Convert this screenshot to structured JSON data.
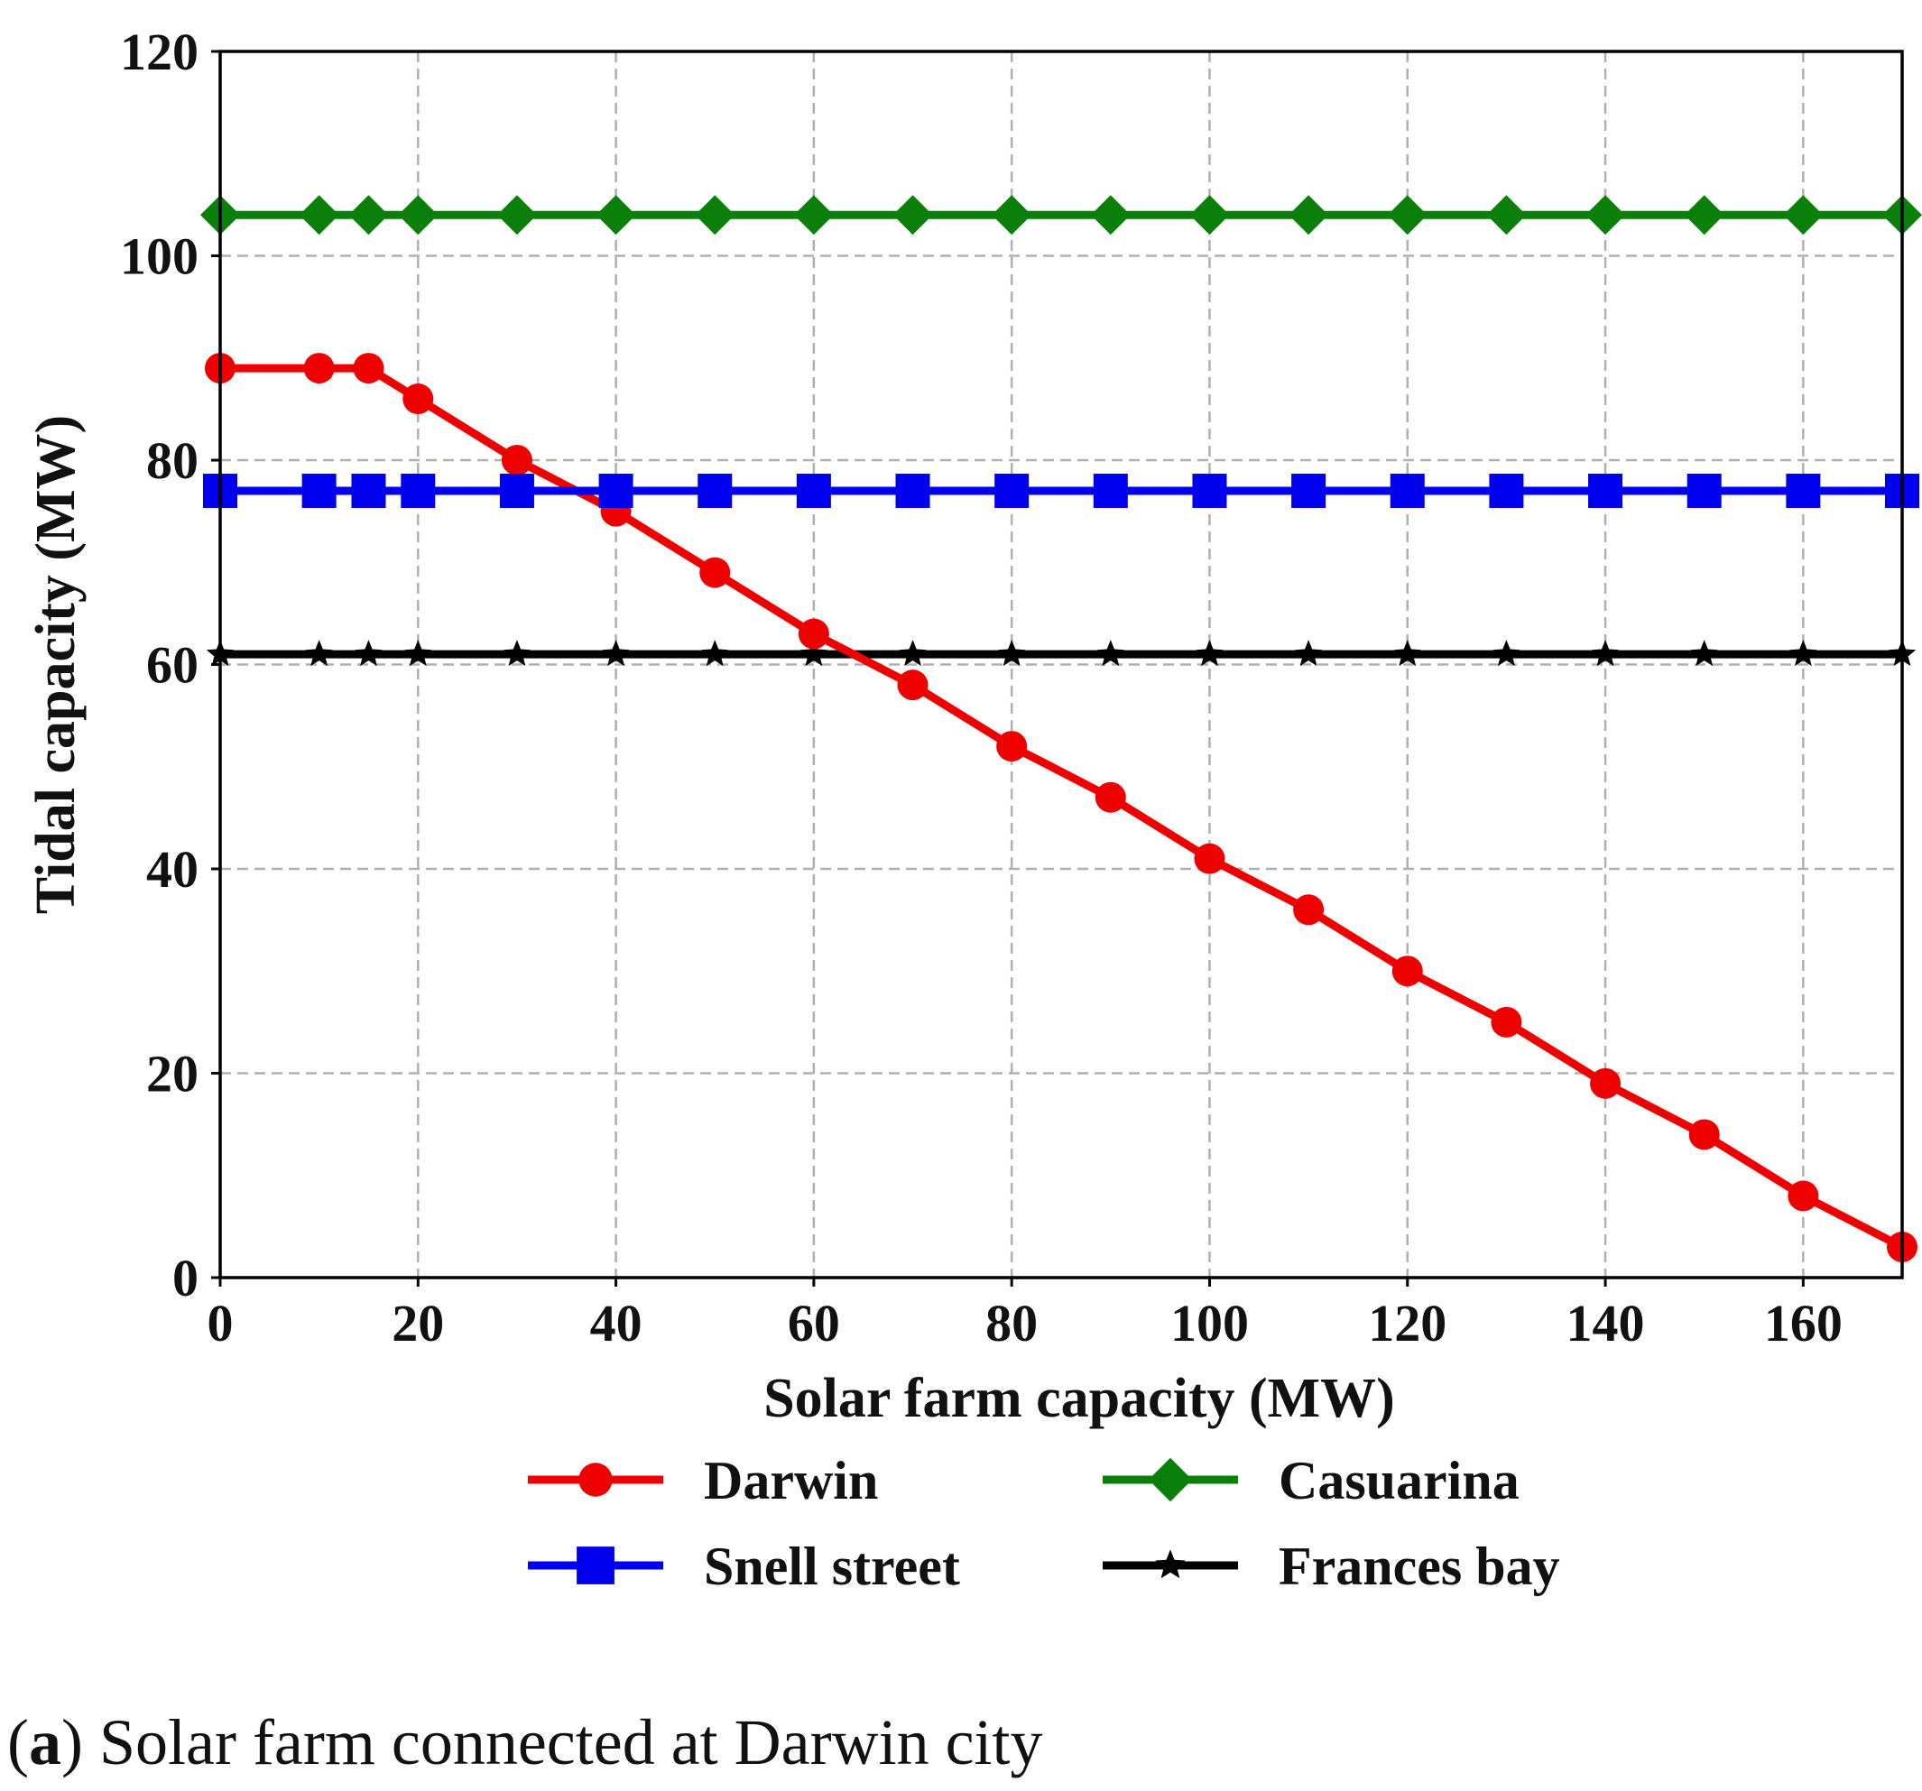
{
  "chart_data": {
    "type": "line",
    "title": "",
    "xlabel": "Solar farm capacity (MW)",
    "ylabel": "Tidal capacity (MW)",
    "xlim": [
      0,
      170
    ],
    "ylim": [
      0,
      120
    ],
    "xticks": [
      0,
      20,
      40,
      60,
      80,
      100,
      120,
      140,
      160
    ],
    "yticks": [
      0,
      20,
      40,
      60,
      80,
      100,
      120
    ],
    "grid": true,
    "legend_position": "bottom-center, outside plot, 2 columns",
    "x": [
      0,
      10,
      15,
      20,
      30,
      40,
      50,
      60,
      70,
      80,
      90,
      100,
      110,
      120,
      130,
      140,
      150,
      160,
      170
    ],
    "series": [
      {
        "name": "Darwin",
        "color": "#ee0000",
        "marker": "circle",
        "values": [
          89,
          89,
          89,
          86,
          80,
          75,
          69,
          63,
          58,
          52,
          47,
          41,
          36,
          30,
          25,
          19,
          14,
          8,
          3
        ]
      },
      {
        "name": "Casuarina",
        "color": "#0a800a",
        "marker": "diamond",
        "values": [
          104,
          104,
          104,
          104,
          104,
          104,
          104,
          104,
          104,
          104,
          104,
          104,
          104,
          104,
          104,
          104,
          104,
          104,
          104
        ]
      },
      {
        "name": "Snell street",
        "color": "#0000ee",
        "marker": "square",
        "values": [
          77,
          77,
          77,
          77,
          77,
          77,
          77,
          77,
          77,
          77,
          77,
          77,
          77,
          77,
          77,
          77,
          77,
          77,
          77
        ]
      },
      {
        "name": "Frances bay",
        "color": "#000000",
        "marker": "star",
        "values": [
          61,
          61,
          61,
          61,
          61,
          61,
          61,
          61,
          61,
          61,
          61,
          61,
          61,
          61,
          61,
          61,
          61,
          61,
          61
        ]
      }
    ]
  },
  "caption": {
    "label": "a",
    "text": "Solar farm connected at Darwin city"
  }
}
